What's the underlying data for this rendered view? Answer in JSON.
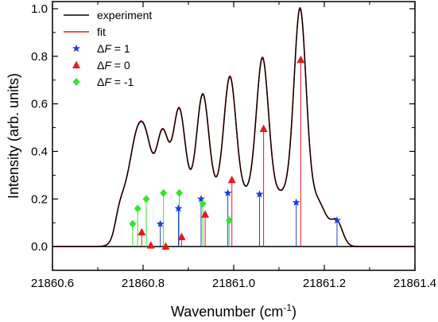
{
  "chart_data": {
    "type": "line",
    "xlabel": "Wavenumber (cm",
    "xlabel_sup": "-1",
    "xlabel_close": ")",
    "ylabel": "Intensity (arb. units)",
    "xlim": [
      21860.6,
      21861.4
    ],
    "ylim": [
      -0.1,
      1.03
    ],
    "x_ticks": [
      21860.6,
      21860.8,
      21861.0,
      21861.2,
      21861.4
    ],
    "x_tick_labels": [
      "21860.6",
      "21860.8",
      "21861.0",
      "21861.2",
      "21861.4"
    ],
    "y_ticks": [
      0.0,
      0.2,
      0.4,
      0.6,
      0.8,
      1.0
    ],
    "y_tick_labels": [
      "0.0",
      "0.2",
      "0.4",
      "0.6",
      "0.8",
      "1.0"
    ],
    "legend_position": "top-left",
    "baseline": 0.0,
    "curve_components": [
      {
        "center": 21860.777,
        "amplitude": 0.095
      },
      {
        "center": 21860.788,
        "amplitude": 0.16
      },
      {
        "center": 21860.797,
        "amplitude": 0.06
      },
      {
        "center": 21860.807,
        "amplitude": 0.2
      },
      {
        "center": 21860.817,
        "amplitude": 0.005
      },
      {
        "center": 21860.838,
        "amplitude": 0.095
      },
      {
        "center": 21860.845,
        "amplitude": 0.225
      },
      {
        "center": 21860.85,
        "amplitude": 0.0
      },
      {
        "center": 21860.878,
        "amplitude": 0.16
      },
      {
        "center": 21860.88,
        "amplitude": 0.225
      },
      {
        "center": 21860.885,
        "amplitude": 0.04
      },
      {
        "center": 21860.928,
        "amplitude": 0.2
      },
      {
        "center": 21860.932,
        "amplitude": 0.18
      },
      {
        "center": 21860.937,
        "amplitude": 0.135
      },
      {
        "center": 21860.987,
        "amplitude": 0.225
      },
      {
        "center": 21860.99,
        "amplitude": 0.11
      },
      {
        "center": 21860.996,
        "amplitude": 0.28
      },
      {
        "center": 21861.057,
        "amplitude": 0.22
      },
      {
        "center": 21861.066,
        "amplitude": 0.495
      },
      {
        "center": 21861.138,
        "amplitude": 0.185
      },
      {
        "center": 21861.148,
        "amplitude": 0.785
      },
      {
        "center": 21861.228,
        "amplitude": 0.11
      }
    ],
    "series": [
      {
        "name": "experiment",
        "kind": "line",
        "color": "#000000"
      },
      {
        "name": "fit",
        "kind": "line",
        "color": "#e41a1c"
      },
      {
        "name": "ΔF = 1",
        "name_prefix": "Δ",
        "name_var": "F",
        "name_suffix": " = 1",
        "kind": "stick",
        "marker": "star",
        "color": "#1f3fd6",
        "x": [
          21860.838,
          21860.878,
          21860.928,
          21860.987,
          21861.057,
          21861.138,
          21861.228
        ],
        "y": [
          0.095,
          0.16,
          0.2,
          0.225,
          0.22,
          0.185,
          0.11
        ]
      },
      {
        "name": "ΔF = 0",
        "name_prefix": "Δ",
        "name_var": "F",
        "name_suffix": " = 0",
        "kind": "stick",
        "marker": "triangle",
        "color": "#e41a1c",
        "x": [
          21860.797,
          21860.817,
          21860.85,
          21860.885,
          21860.937,
          21860.996,
          21861.066,
          21861.148
        ],
        "y": [
          0.06,
          0.005,
          0.0,
          0.04,
          0.135,
          0.28,
          0.495,
          0.785
        ]
      },
      {
        "name": "ΔF = -1",
        "name_prefix": "Δ",
        "name_var": "F",
        "name_suffix": " = -1",
        "kind": "stick",
        "marker": "diamond",
        "color": "#2ee82e",
        "x": [
          21860.777,
          21860.788,
          21860.807,
          21860.845,
          21860.88,
          21860.932,
          21860.99
        ],
        "y": [
          0.095,
          0.16,
          0.2,
          0.225,
          0.225,
          0.18,
          0.11
        ]
      }
    ]
  }
}
